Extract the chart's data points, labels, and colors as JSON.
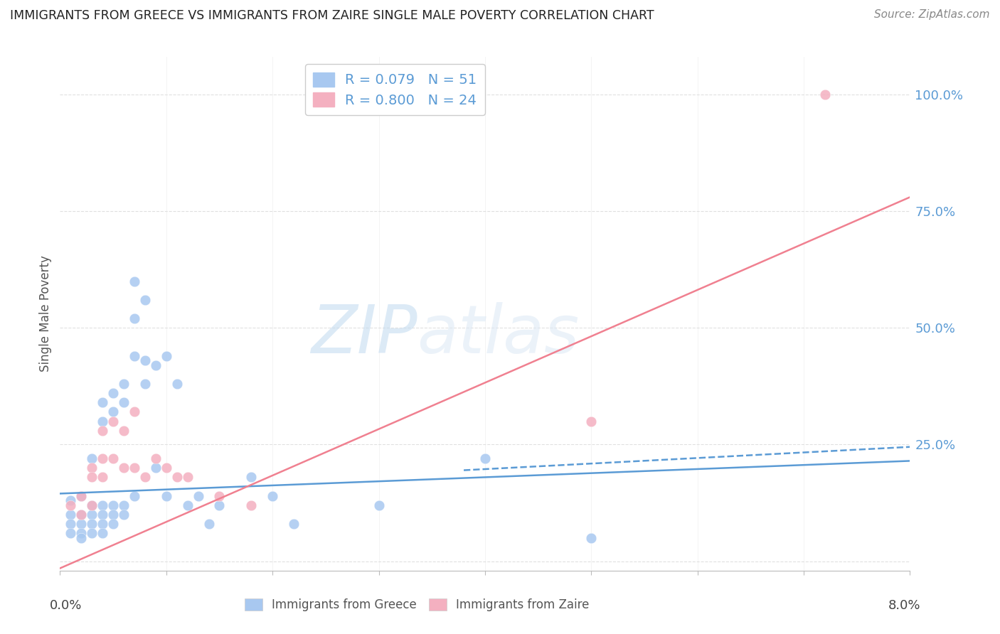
{
  "title": "IMMIGRANTS FROM GREECE VS IMMIGRANTS FROM ZAIRE SINGLE MALE POVERTY CORRELATION CHART",
  "source": "Source: ZipAtlas.com",
  "ylabel": "Single Male Poverty",
  "xlim": [
    0.0,
    0.08
  ],
  "ylim": [
    -0.02,
    1.08
  ],
  "yticks": [
    0.0,
    0.25,
    0.5,
    0.75,
    1.0
  ],
  "ytick_labels": [
    "",
    "25.0%",
    "50.0%",
    "75.0%",
    "100.0%"
  ],
  "watermark_zip": "ZIP",
  "watermark_atlas": "atlas",
  "greece_scatter": [
    [
      0.001,
      0.13
    ],
    [
      0.001,
      0.1
    ],
    [
      0.001,
      0.08
    ],
    [
      0.001,
      0.06
    ],
    [
      0.002,
      0.14
    ],
    [
      0.002,
      0.1
    ],
    [
      0.002,
      0.08
    ],
    [
      0.002,
      0.06
    ],
    [
      0.002,
      0.05
    ],
    [
      0.003,
      0.22
    ],
    [
      0.003,
      0.12
    ],
    [
      0.003,
      0.1
    ],
    [
      0.003,
      0.08
    ],
    [
      0.003,
      0.06
    ],
    [
      0.004,
      0.34
    ],
    [
      0.004,
      0.3
    ],
    [
      0.004,
      0.12
    ],
    [
      0.004,
      0.1
    ],
    [
      0.004,
      0.08
    ],
    [
      0.004,
      0.06
    ],
    [
      0.005,
      0.36
    ],
    [
      0.005,
      0.32
    ],
    [
      0.005,
      0.12
    ],
    [
      0.005,
      0.1
    ],
    [
      0.005,
      0.08
    ],
    [
      0.006,
      0.38
    ],
    [
      0.006,
      0.34
    ],
    [
      0.006,
      0.12
    ],
    [
      0.006,
      0.1
    ],
    [
      0.007,
      0.6
    ],
    [
      0.007,
      0.52
    ],
    [
      0.007,
      0.44
    ],
    [
      0.007,
      0.14
    ],
    [
      0.008,
      0.56
    ],
    [
      0.008,
      0.43
    ],
    [
      0.008,
      0.38
    ],
    [
      0.009,
      0.42
    ],
    [
      0.009,
      0.2
    ],
    [
      0.01,
      0.44
    ],
    [
      0.01,
      0.14
    ],
    [
      0.011,
      0.38
    ],
    [
      0.012,
      0.12
    ],
    [
      0.013,
      0.14
    ],
    [
      0.014,
      0.08
    ],
    [
      0.015,
      0.12
    ],
    [
      0.018,
      0.18
    ],
    [
      0.02,
      0.14
    ],
    [
      0.022,
      0.08
    ],
    [
      0.03,
      0.12
    ],
    [
      0.04,
      0.22
    ],
    [
      0.05,
      0.05
    ]
  ],
  "zaire_scatter": [
    [
      0.001,
      0.12
    ],
    [
      0.002,
      0.14
    ],
    [
      0.002,
      0.1
    ],
    [
      0.003,
      0.2
    ],
    [
      0.003,
      0.18
    ],
    [
      0.003,
      0.12
    ],
    [
      0.004,
      0.28
    ],
    [
      0.004,
      0.22
    ],
    [
      0.004,
      0.18
    ],
    [
      0.005,
      0.3
    ],
    [
      0.005,
      0.22
    ],
    [
      0.006,
      0.28
    ],
    [
      0.006,
      0.2
    ],
    [
      0.007,
      0.32
    ],
    [
      0.007,
      0.2
    ],
    [
      0.008,
      0.18
    ],
    [
      0.009,
      0.22
    ],
    [
      0.01,
      0.2
    ],
    [
      0.011,
      0.18
    ],
    [
      0.012,
      0.18
    ],
    [
      0.015,
      0.14
    ],
    [
      0.018,
      0.12
    ],
    [
      0.05,
      0.3
    ],
    [
      0.072,
      1.0
    ]
  ],
  "greece_line": {
    "x0": 0.0,
    "x1": 0.08,
    "y0": 0.145,
    "y1": 0.215
  },
  "greece_dash_line": {
    "x0": 0.038,
    "x1": 0.08,
    "y0": 0.195,
    "y1": 0.245
  },
  "zaire_line": {
    "x0": 0.0,
    "x1": 0.08,
    "y0": -0.015,
    "y1": 0.78
  },
  "greece_line_color": "#5b9bd5",
  "zaire_line_color": "#f08090",
  "greece_dot_color": "#a8c8f0",
  "zaire_dot_color": "#f4b0c0",
  "background_color": "#ffffff",
  "grid_color": "#e0e0e0",
  "legend_greece_color": "#a8c8f0",
  "legend_zaire_color": "#f4b0c0",
  "legend_text_color": "#5b9bd5",
  "right_axis_color": "#5b9bd5",
  "title_color": "#222222",
  "source_color": "#888888"
}
